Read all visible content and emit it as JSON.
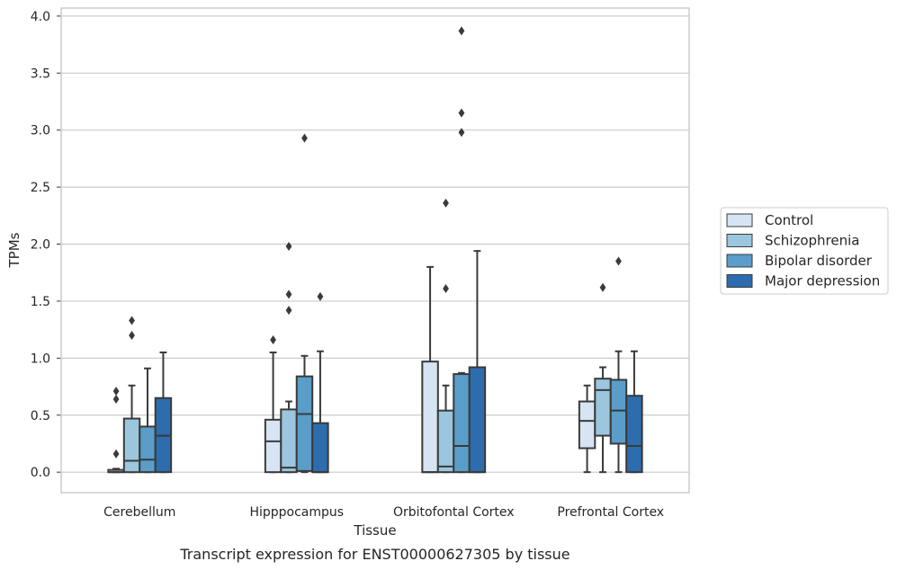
{
  "caption": "Transcript expression for ENST00000627305 by tissue",
  "chart_data": {
    "type": "box",
    "title": "",
    "xlabel": "Tissue",
    "ylabel": "TPMs",
    "ylim": [
      -0.18,
      4.07
    ],
    "yticks": [
      0.0,
      0.5,
      1.0,
      1.5,
      2.0,
      2.5,
      3.0,
      3.5,
      4.0
    ],
    "ytick_labels": [
      "0.0",
      "0.5",
      "1.0",
      "1.5",
      "2.0",
      "2.5",
      "3.0",
      "3.5",
      "4.0"
    ],
    "grid": "horizontal",
    "legend_position": "right",
    "categories": [
      "Cerebellum",
      "Hipppocampus",
      "Orbitofontal Cortex",
      "Prefrontal Cortex"
    ],
    "series": [
      {
        "name": "Control",
        "color": "#d6e4f3",
        "boxes": [
          {
            "q1": 0.0,
            "median": 0.0,
            "q3": 0.02,
            "whisker_low": 0.0,
            "whisker_high": 0.03,
            "outliers": [
              0.16,
              0.64,
              0.71
            ]
          },
          {
            "q1": 0.0,
            "median": 0.27,
            "q3": 0.46,
            "whisker_low": 0.0,
            "whisker_high": 1.05,
            "outliers": [
              1.16
            ]
          },
          {
            "q1": 0.0,
            "median": 0.0,
            "q3": 0.97,
            "whisker_low": 0.0,
            "whisker_high": 1.8,
            "outliers": []
          },
          {
            "q1": 0.21,
            "median": 0.45,
            "q3": 0.62,
            "whisker_low": 0.0,
            "whisker_high": 0.76,
            "outliers": []
          }
        ]
      },
      {
        "name": "Schizophrenia",
        "color": "#9bc6de",
        "boxes": [
          {
            "q1": 0.0,
            "median": 0.1,
            "q3": 0.47,
            "whisker_low": 0.0,
            "whisker_high": 0.76,
            "outliers": [
              1.2,
              1.33
            ]
          },
          {
            "q1": 0.0,
            "median": 0.04,
            "q3": 0.55,
            "whisker_low": 0.0,
            "whisker_high": 0.62,
            "outliers": [
              1.42,
              1.56,
              1.98
            ]
          },
          {
            "q1": 0.0,
            "median": 0.05,
            "q3": 0.54,
            "whisker_low": 0.0,
            "whisker_high": 0.76,
            "outliers": [
              1.61,
              2.36
            ]
          },
          {
            "q1": 0.32,
            "median": 0.72,
            "q3": 0.82,
            "whisker_low": 0.0,
            "whisker_high": 0.92,
            "outliers": [
              1.62
            ]
          }
        ]
      },
      {
        "name": "Bipolar disorder",
        "color": "#5a9dc9",
        "boxes": [
          {
            "q1": 0.0,
            "median": 0.11,
            "q3": 0.4,
            "whisker_low": 0.0,
            "whisker_high": 0.91,
            "outliers": []
          },
          {
            "q1": 0.01,
            "median": 0.51,
            "q3": 0.84,
            "whisker_low": 0.0,
            "whisker_high": 1.02,
            "outliers": [
              2.93
            ]
          },
          {
            "q1": 0.0,
            "median": 0.23,
            "q3": 0.86,
            "whisker_low": 0.0,
            "whisker_high": 0.87,
            "outliers": [
              2.98,
              3.15,
              3.87
            ]
          },
          {
            "q1": 0.25,
            "median": 0.54,
            "q3": 0.81,
            "whisker_low": 0.0,
            "whisker_high": 1.06,
            "outliers": [
              1.85
            ]
          }
        ]
      },
      {
        "name": "Major depression",
        "color": "#2d6cad",
        "boxes": [
          {
            "q1": 0.0,
            "median": 0.32,
            "q3": 0.65,
            "whisker_low": 0.0,
            "whisker_high": 1.05,
            "outliers": []
          },
          {
            "q1": 0.0,
            "median": 0.0,
            "q3": 0.43,
            "whisker_low": 0.0,
            "whisker_high": 1.06,
            "outliers": [
              1.54
            ]
          },
          {
            "q1": 0.0,
            "median": 0.0,
            "q3": 0.92,
            "whisker_low": 0.0,
            "whisker_high": 1.94,
            "outliers": []
          },
          {
            "q1": 0.0,
            "median": 0.23,
            "q3": 0.67,
            "whisker_low": 0.0,
            "whisker_high": 1.06,
            "outliers": []
          }
        ]
      }
    ]
  }
}
